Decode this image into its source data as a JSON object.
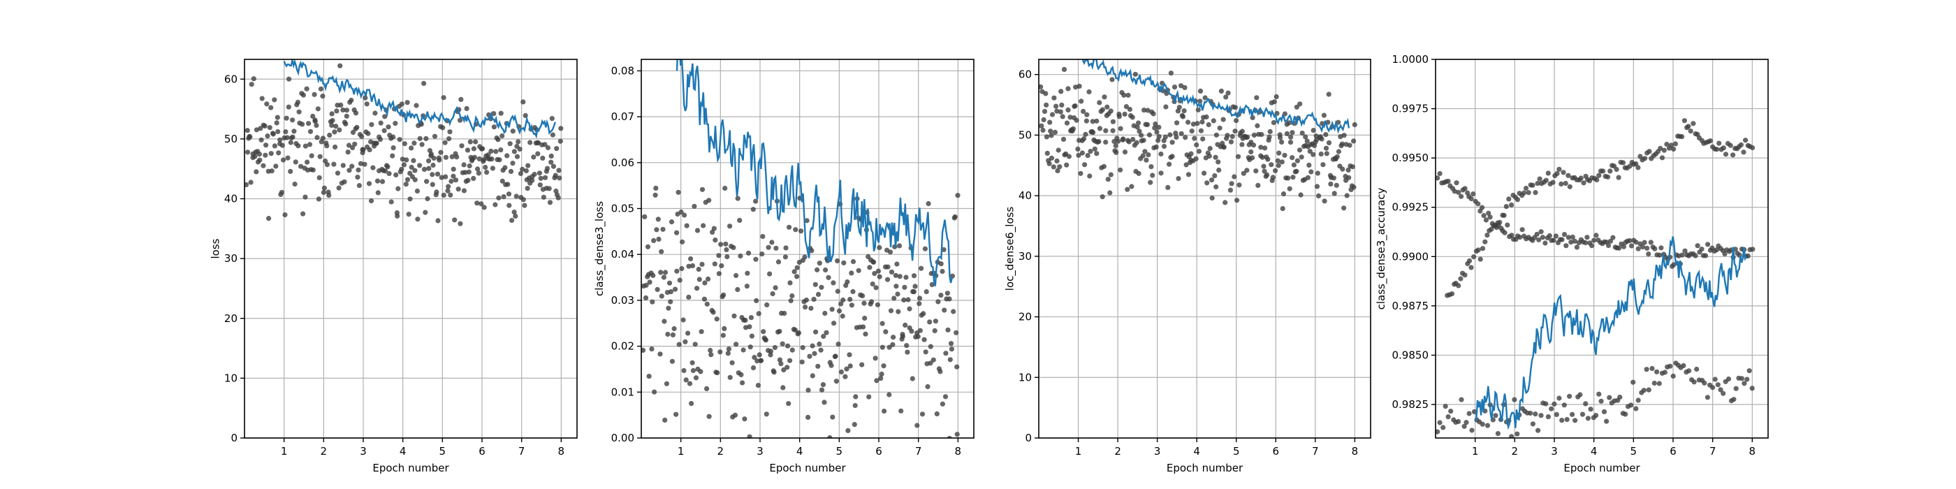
{
  "chart_data": [
    {
      "type": "scatter",
      "ylabel": "loss",
      "xlabel": "Epoch number",
      "xlim": [
        0.0,
        8.4
      ],
      "ylim": [
        0,
        63.3
      ],
      "xticks": [
        "1",
        "2",
        "3",
        "4",
        "5",
        "6",
        "7",
        "8"
      ],
      "yticks": [
        "0",
        "10",
        "20",
        "30",
        "40",
        "50",
        "60"
      ],
      "grid": true,
      "series": [
        {
          "kind": "scatter",
          "color": "#404040",
          "count": 420,
          "trend": [
            [
              0.05,
              50
            ],
            [
              8.0,
              45
            ]
          ],
          "spread": 9,
          "seed": 11
        },
        {
          "kind": "line",
          "color": "#1f77b4",
          "x_range": [
            1.0,
            7.85
          ],
          "trend": [
            [
              1.0,
              63.5
            ],
            [
              2.0,
              60
            ],
            [
              3.0,
              58
            ],
            [
              4.0,
              54
            ],
            [
              5.0,
              54
            ],
            [
              6.0,
              53
            ],
            [
              7.0,
              52.5
            ],
            [
              7.85,
              51.5
            ]
          ],
          "noise": 1.0,
          "seed": 21
        }
      ]
    },
    {
      "type": "scatter",
      "ylabel": "class_dense3_loss",
      "xlabel": "Epoch number",
      "xlim": [
        0.0,
        8.4
      ],
      "ylim": [
        0,
        0.0825
      ],
      "xticks": [
        "1",
        "2",
        "3",
        "4",
        "5",
        "6",
        "7",
        "8"
      ],
      "yticks": [
        "0.00",
        "0.01",
        "0.02",
        "0.03",
        "0.04",
        "0.05",
        "0.06",
        "0.07",
        "0.08"
      ],
      "grid": true,
      "series": [
        {
          "kind": "scatter",
          "color": "#404040",
          "count": 420,
          "trend": [
            [
              0.05,
              0.032
            ],
            [
              8.0,
              0.025
            ]
          ],
          "spread": 0.022,
          "seed": 31
        },
        {
          "kind": "line",
          "color": "#1f77b4",
          "x_range": [
            0.9,
            7.85
          ],
          "trend": [
            [
              0.9,
              0.083
            ],
            [
              1.5,
              0.07
            ],
            [
              2.0,
              0.063
            ],
            [
              3.0,
              0.058
            ],
            [
              4.0,
              0.052
            ],
            [
              4.5,
              0.045
            ],
            [
              5.0,
              0.048
            ],
            [
              6.0,
              0.047
            ],
            [
              7.0,
              0.046
            ],
            [
              7.5,
              0.042
            ],
            [
              7.85,
              0.035
            ]
          ],
          "noise": 0.006,
          "seed": 41
        }
      ]
    },
    {
      "type": "scatter",
      "ylabel": "loc_dense6_loss",
      "xlabel": "Epoch number",
      "xlim": [
        0.0,
        8.4
      ],
      "ylim": [
        0,
        62.5
      ],
      "xticks": [
        "1",
        "2",
        "3",
        "4",
        "5",
        "6",
        "7",
        "8"
      ],
      "yticks": [
        "0",
        "10",
        "20",
        "30",
        "40",
        "50",
        "60"
      ],
      "grid": true,
      "series": [
        {
          "kind": "scatter",
          "color": "#404040",
          "count": 420,
          "trend": [
            [
              0.05,
              52
            ],
            [
              8.0,
              46
            ]
          ],
          "spread": 8,
          "seed": 51
        },
        {
          "kind": "line",
          "color": "#1f77b4",
          "x_range": [
            1.0,
            7.85
          ],
          "trend": [
            [
              1.0,
              63
            ],
            [
              2.0,
              60
            ],
            [
              3.0,
              58
            ],
            [
              4.0,
              55
            ],
            [
              5.0,
              54
            ],
            [
              6.0,
              53
            ],
            [
              7.0,
              52
            ],
            [
              7.85,
              51
            ]
          ],
          "noise": 0.9,
          "seed": 61
        }
      ]
    },
    {
      "type": "scatter",
      "ylabel": "class_dense3_accuracy",
      "xlabel": "Epoch number",
      "xlim": [
        0.0,
        8.4
      ],
      "ylim": [
        0.9808,
        1.0
      ],
      "xticks": [
        "1",
        "2",
        "3",
        "4",
        "5",
        "6",
        "7",
        "8"
      ],
      "yticks": [
        "0.9825",
        "0.9850",
        "0.9875",
        "0.9900",
        "0.9925",
        "0.9950",
        "0.9975",
        "1.0000"
      ],
      "grid": true,
      "series": [
        {
          "kind": "scatter",
          "color": "#404040",
          "count": 150,
          "trend": [
            [
              0.05,
              0.994
            ],
            [
              1.0,
              0.993
            ],
            [
              1.5,
              0.9915
            ],
            [
              2.0,
              0.991
            ],
            [
              4.0,
              0.9908
            ],
            [
              5.5,
              0.9904
            ],
            [
              6.0,
              0.9898
            ],
            [
              7.0,
              0.9904
            ],
            [
              8.0,
              0.9902
            ]
          ],
          "spread": 0.0003,
          "seed": 71
        },
        {
          "kind": "scatter",
          "color": "#404040",
          "count": 140,
          "trend": [
            [
              0.3,
              0.988
            ],
            [
              1.0,
              0.99
            ],
            [
              1.5,
              0.9915
            ],
            [
              2.0,
              0.993
            ],
            [
              3.0,
              0.994
            ],
            [
              4.0,
              0.994
            ],
            [
              5.0,
              0.9948
            ],
            [
              6.0,
              0.9955
            ],
            [
              6.3,
              0.9968
            ],
            [
              7.0,
              0.9955
            ],
            [
              8.0,
              0.9956
            ]
          ],
          "spread": 0.0004,
          "seed": 81
        },
        {
          "kind": "scatter",
          "color": "#404040",
          "count": 120,
          "trend": [
            [
              0.05,
              0.9818
            ],
            [
              1.0,
              0.9818
            ],
            [
              2.0,
              0.982
            ],
            [
              3.0,
              0.9822
            ],
            [
              4.0,
              0.9822
            ],
            [
              5.0,
              0.9828
            ],
            [
              6.0,
              0.9845
            ],
            [
              7.0,
              0.983
            ],
            [
              8.0,
              0.9837
            ]
          ],
          "spread": 0.0008,
          "seed": 91
        },
        {
          "kind": "line",
          "color": "#1f77b4",
          "x_range": [
            1.0,
            7.85
          ],
          "trend": [
            [
              1.0,
              0.982
            ],
            [
              1.5,
              0.983
            ],
            [
              2.0,
              0.9815
            ],
            [
              2.5,
              0.986
            ],
            [
              3.0,
              0.9868
            ],
            [
              4.0,
              0.986
            ],
            [
              5.0,
              0.988
            ],
            [
              5.5,
              0.9885
            ],
            [
              6.0,
              0.9905
            ],
            [
              6.5,
              0.988
            ],
            [
              7.0,
              0.9885
            ],
            [
              7.5,
              0.9895
            ],
            [
              7.85,
              0.9905
            ]
          ],
          "noise": 0.0008,
          "seed": 101
        }
      ]
    }
  ]
}
